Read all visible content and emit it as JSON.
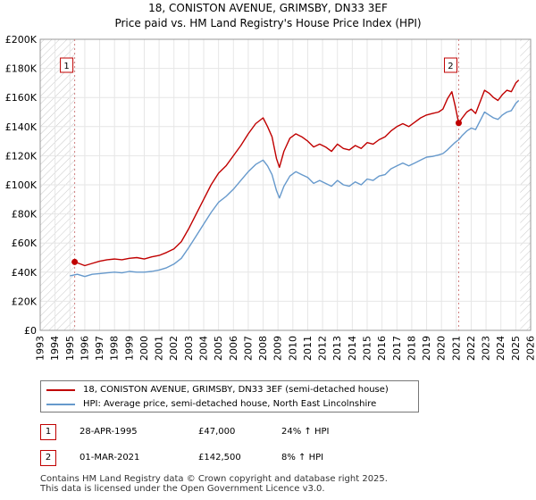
{
  "chart_data": {
    "type": "line",
    "title": "18, CONISTON AVENUE, GRIMSBY, DN33 3EF",
    "subtitle": "Price paid vs. HM Land Registry's House Price Index (HPI)",
    "xlim": [
      1993,
      2026
    ],
    "ylim": [
      0,
      200000
    ],
    "x_ticks": [
      1993,
      1994,
      1995,
      1996,
      1997,
      1998,
      1999,
      2000,
      2001,
      2002,
      2003,
      2004,
      2005,
      2006,
      2007,
      2008,
      2009,
      2010,
      2011,
      2012,
      2013,
      2014,
      2015,
      2016,
      2017,
      2018,
      2019,
      2020,
      2021,
      2022,
      2023,
      2024,
      2025,
      2026
    ],
    "y_ticks": [
      {
        "value": 0,
        "label": "£0"
      },
      {
        "value": 20000,
        "label": "£20K"
      },
      {
        "value": 40000,
        "label": "£40K"
      },
      {
        "value": 60000,
        "label": "£60K"
      },
      {
        "value": 80000,
        "label": "£80K"
      },
      {
        "value": 100000,
        "label": "£100K"
      },
      {
        "value": 120000,
        "label": "£120K"
      },
      {
        "value": 140000,
        "label": "£140K"
      },
      {
        "value": 160000,
        "label": "£160K"
      },
      {
        "value": 180000,
        "label": "£180K"
      },
      {
        "value": 200000,
        "label": "£200K"
      }
    ],
    "grid": true,
    "hatched_ranges": [
      [
        1993,
        1995.32
      ],
      [
        2025.3,
        2026
      ]
    ],
    "series": [
      {
        "name": "18, CONISTON AVENUE, GRIMSBY, DN33 3EF (semi-detached house)",
        "color": "#c00000",
        "points": [
          [
            1995.32,
            47000
          ],
          [
            1995.6,
            46000
          ],
          [
            1996.0,
            44500
          ],
          [
            1996.5,
            46000
          ],
          [
            1997.0,
            47500
          ],
          [
            1997.5,
            48500
          ],
          [
            1998.0,
            49000
          ],
          [
            1998.5,
            48500
          ],
          [
            1999.0,
            49500
          ],
          [
            1999.5,
            50000
          ],
          [
            2000.0,
            49000
          ],
          [
            2000.5,
            50500
          ],
          [
            2001.0,
            51500
          ],
          [
            2001.5,
            53500
          ],
          [
            2002.0,
            56000
          ],
          [
            2002.5,
            61000
          ],
          [
            2003.0,
            70000
          ],
          [
            2003.5,
            80000
          ],
          [
            2004.0,
            90000
          ],
          [
            2004.5,
            100000
          ],
          [
            2005.0,
            108000
          ],
          [
            2005.5,
            113000
          ],
          [
            2006.0,
            120000
          ],
          [
            2006.5,
            127000
          ],
          [
            2007.0,
            135000
          ],
          [
            2007.5,
            142000
          ],
          [
            2008.0,
            146000
          ],
          [
            2008.3,
            140000
          ],
          [
            2008.6,
            133000
          ],
          [
            2008.9,
            118000
          ],
          [
            2009.1,
            112000
          ],
          [
            2009.4,
            123000
          ],
          [
            2009.8,
            132000
          ],
          [
            2010.2,
            135000
          ],
          [
            2010.6,
            133000
          ],
          [
            2011.0,
            130000
          ],
          [
            2011.4,
            126000
          ],
          [
            2011.8,
            128000
          ],
          [
            2012.2,
            126000
          ],
          [
            2012.6,
            123000
          ],
          [
            2013.0,
            128000
          ],
          [
            2013.4,
            125000
          ],
          [
            2013.8,
            124000
          ],
          [
            2014.2,
            127000
          ],
          [
            2014.6,
            125000
          ],
          [
            2015.0,
            129000
          ],
          [
            2015.4,
            128000
          ],
          [
            2015.8,
            131000
          ],
          [
            2016.2,
            133000
          ],
          [
            2016.6,
            137000
          ],
          [
            2017.0,
            140000
          ],
          [
            2017.4,
            142000
          ],
          [
            2017.8,
            140000
          ],
          [
            2018.2,
            143000
          ],
          [
            2018.6,
            146000
          ],
          [
            2019.0,
            148000
          ],
          [
            2019.4,
            149000
          ],
          [
            2019.8,
            150000
          ],
          [
            2020.1,
            152000
          ],
          [
            2020.4,
            159000
          ],
          [
            2020.7,
            164000
          ],
          [
            2020.9,
            155000
          ],
          [
            2021.16,
            142500
          ],
          [
            2021.4,
            146000
          ],
          [
            2021.7,
            150000
          ],
          [
            2022.0,
            152000
          ],
          [
            2022.3,
            149000
          ],
          [
            2022.6,
            157000
          ],
          [
            2022.9,
            165000
          ],
          [
            2023.2,
            163000
          ],
          [
            2023.5,
            160000
          ],
          [
            2023.8,
            158000
          ],
          [
            2024.1,
            162000
          ],
          [
            2024.4,
            165000
          ],
          [
            2024.7,
            164000
          ],
          [
            2025.0,
            170000
          ],
          [
            2025.2,
            172000
          ]
        ]
      },
      {
        "name": "HPI: Average price, semi-detached house, North East Lincolnshire",
        "color": "#6699cc",
        "points": [
          [
            1995.0,
            37500
          ],
          [
            1995.5,
            38500
          ],
          [
            1996.0,
            37000
          ],
          [
            1996.5,
            38500
          ],
          [
            1997.0,
            39000
          ],
          [
            1997.5,
            39500
          ],
          [
            1998.0,
            40000
          ],
          [
            1998.5,
            39500
          ],
          [
            1999.0,
            40500
          ],
          [
            1999.5,
            40000
          ],
          [
            2000.0,
            40000
          ],
          [
            2000.5,
            40500
          ],
          [
            2001.0,
            41500
          ],
          [
            2001.5,
            43000
          ],
          [
            2002.0,
            45500
          ],
          [
            2002.5,
            49500
          ],
          [
            2003.0,
            57000
          ],
          [
            2003.5,
            65000
          ],
          [
            2004.0,
            73000
          ],
          [
            2004.5,
            81000
          ],
          [
            2005.0,
            88000
          ],
          [
            2005.5,
            92000
          ],
          [
            2006.0,
            97000
          ],
          [
            2006.5,
            103000
          ],
          [
            2007.0,
            109000
          ],
          [
            2007.5,
            114000
          ],
          [
            2008.0,
            117000
          ],
          [
            2008.3,
            113000
          ],
          [
            2008.6,
            107000
          ],
          [
            2008.9,
            96000
          ],
          [
            2009.1,
            91000
          ],
          [
            2009.4,
            99000
          ],
          [
            2009.8,
            106000
          ],
          [
            2010.2,
            109000
          ],
          [
            2010.6,
            107000
          ],
          [
            2011.0,
            105000
          ],
          [
            2011.4,
            101000
          ],
          [
            2011.8,
            103000
          ],
          [
            2012.2,
            101000
          ],
          [
            2012.6,
            99000
          ],
          [
            2013.0,
            103000
          ],
          [
            2013.4,
            100000
          ],
          [
            2013.8,
            99000
          ],
          [
            2014.2,
            102000
          ],
          [
            2014.6,
            100000
          ],
          [
            2015.0,
            104000
          ],
          [
            2015.4,
            103000
          ],
          [
            2015.8,
            106000
          ],
          [
            2016.2,
            107000
          ],
          [
            2016.6,
            111000
          ],
          [
            2017.0,
            113000
          ],
          [
            2017.4,
            115000
          ],
          [
            2017.8,
            113000
          ],
          [
            2018.2,
            115000
          ],
          [
            2018.6,
            117000
          ],
          [
            2019.0,
            119000
          ],
          [
            2019.4,
            119500
          ],
          [
            2019.8,
            120500
          ],
          [
            2020.1,
            121500
          ],
          [
            2020.4,
            124000
          ],
          [
            2020.7,
            127000
          ],
          [
            2020.9,
            129000
          ],
          [
            2021.16,
            131000
          ],
          [
            2021.4,
            134000
          ],
          [
            2021.7,
            137000
          ],
          [
            2022.0,
            139000
          ],
          [
            2022.3,
            138000
          ],
          [
            2022.6,
            144000
          ],
          [
            2022.9,
            150000
          ],
          [
            2023.2,
            148000
          ],
          [
            2023.5,
            146000
          ],
          [
            2023.8,
            145000
          ],
          [
            2024.1,
            148000
          ],
          [
            2024.4,
            150000
          ],
          [
            2024.7,
            151000
          ],
          [
            2025.0,
            156000
          ],
          [
            2025.2,
            158000
          ]
        ]
      }
    ],
    "sales": [
      {
        "label": "1",
        "x": 1995.32,
        "value": 47000
      },
      {
        "label": "2",
        "x": 2021.16,
        "value": 142500
      }
    ]
  },
  "legend": {
    "items": [
      {
        "label": "18, CONISTON AVENUE, GRIMSBY, DN33 3EF (semi-detached house)",
        "color": "#c00000"
      },
      {
        "label": "HPI: Average price, semi-detached house, North East Lincolnshire",
        "color": "#6699cc"
      }
    ]
  },
  "transactions": [
    {
      "num": "1",
      "date": "28-APR-1995",
      "price": "£47,000",
      "hpi": "24% ↑ HPI"
    },
    {
      "num": "2",
      "date": "01-MAR-2021",
      "price": "£142,500",
      "hpi": "8% ↑ HPI"
    }
  ],
  "footer": {
    "line1": "Contains HM Land Registry data © Crown copyright and database right 2025.",
    "line2": "This data is licensed under the Open Government Licence v3.0."
  }
}
